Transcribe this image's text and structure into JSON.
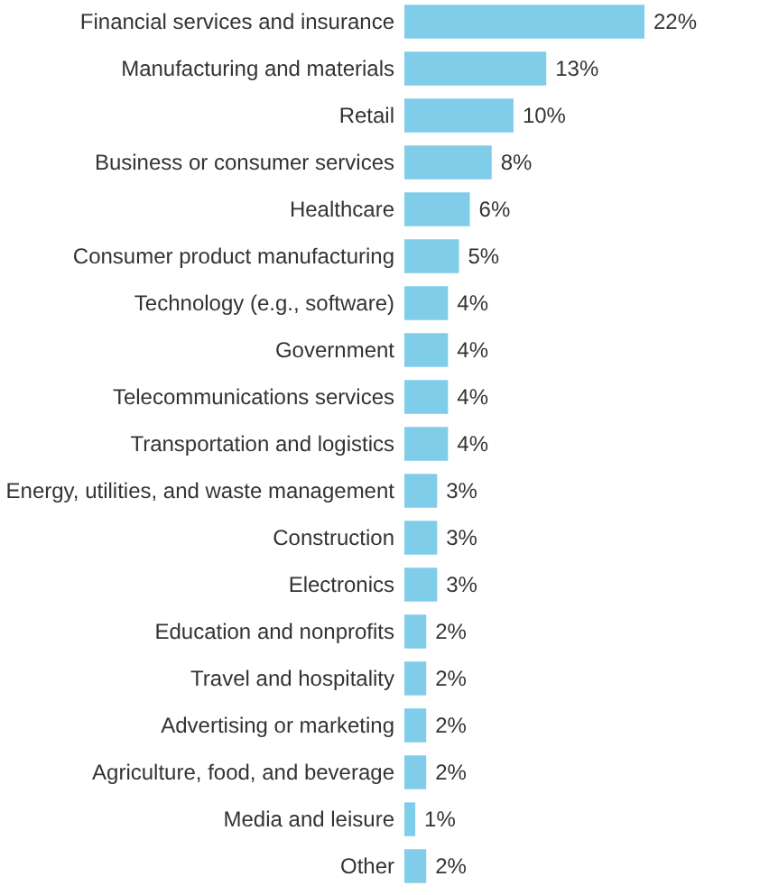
{
  "chart_data": {
    "type": "bar",
    "orientation": "horizontal",
    "categories": [
      "Financial services and insurance",
      "Manufacturing and materials",
      "Retail",
      "Business or consumer services",
      "Healthcare",
      "Consumer product manufacturing",
      "Technology (e.g., software)",
      "Government",
      "Telecommunications services",
      "Transportation and logistics",
      "Energy, utilities, and waste management",
      "Construction",
      "Electronics",
      "Education and nonprofits",
      "Travel and hospitality",
      "Advertising or marketing",
      "Agriculture, food, and beverage",
      "Media and leisure",
      "Other"
    ],
    "values": [
      22,
      13,
      10,
      8,
      6,
      5,
      4,
      4,
      4,
      4,
      3,
      3,
      3,
      2,
      2,
      2,
      2,
      1,
      2
    ],
    "value_labels": [
      "22%",
      "13%",
      "10%",
      "8%",
      "6%",
      "5%",
      "4%",
      "4%",
      "4%",
      "4%",
      "3%",
      "3%",
      "3%",
      "2%",
      "2%",
      "2%",
      "2%",
      "1%",
      "2%"
    ],
    "color": "#80cde9"
  }
}
